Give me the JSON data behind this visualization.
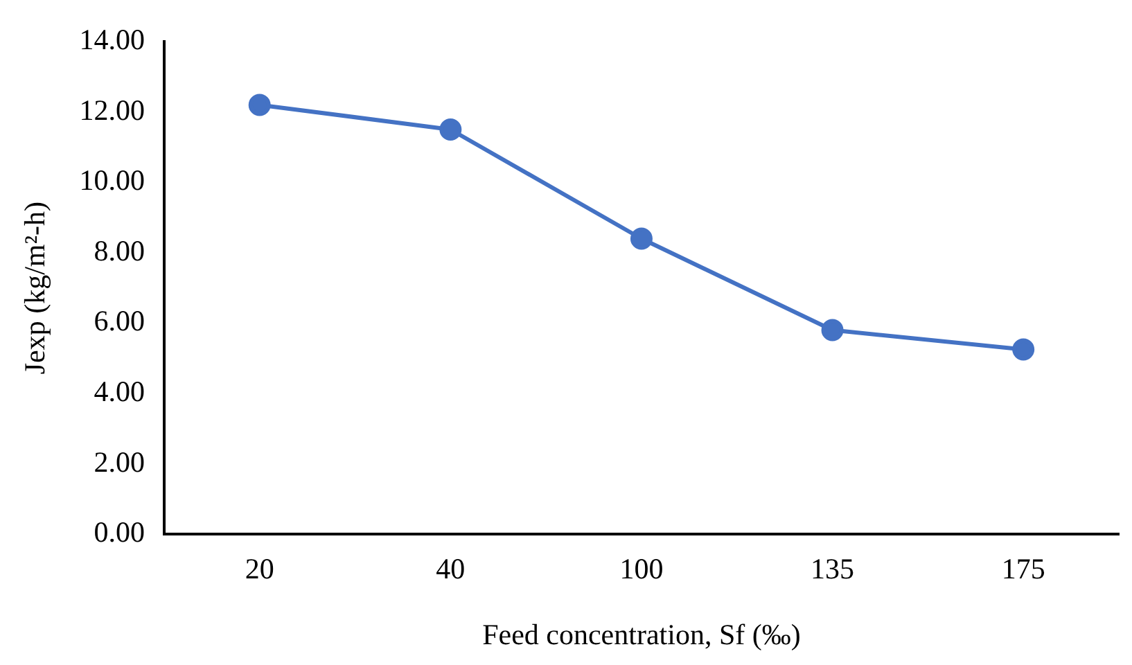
{
  "chart_data": {
    "type": "line",
    "xlabel": "Feed concentration, Sf (‰)",
    "ylabel": "Jexp (kg/m²-h)",
    "categories": [
      "20",
      "40",
      "100",
      "135",
      "175"
    ],
    "series": [
      {
        "color": "#4472c4",
        "values": [
          12.2,
          11.5,
          8.4,
          5.8,
          5.25
        ]
      }
    ],
    "ylim": [
      0,
      14
    ],
    "yticks": [
      {
        "value": 0,
        "label": "0.00"
      },
      {
        "value": 2,
        "label": "2.00"
      },
      {
        "value": 4,
        "label": "4.00"
      },
      {
        "value": 6,
        "label": "6.00"
      },
      {
        "value": 8,
        "label": "8.00"
      },
      {
        "value": 10,
        "label": "10.00"
      },
      {
        "value": 12,
        "label": "12.00"
      },
      {
        "value": 14,
        "label": "14.00"
      }
    ],
    "grid": false,
    "legend": false,
    "marker": "circle",
    "line_style": "solid"
  }
}
